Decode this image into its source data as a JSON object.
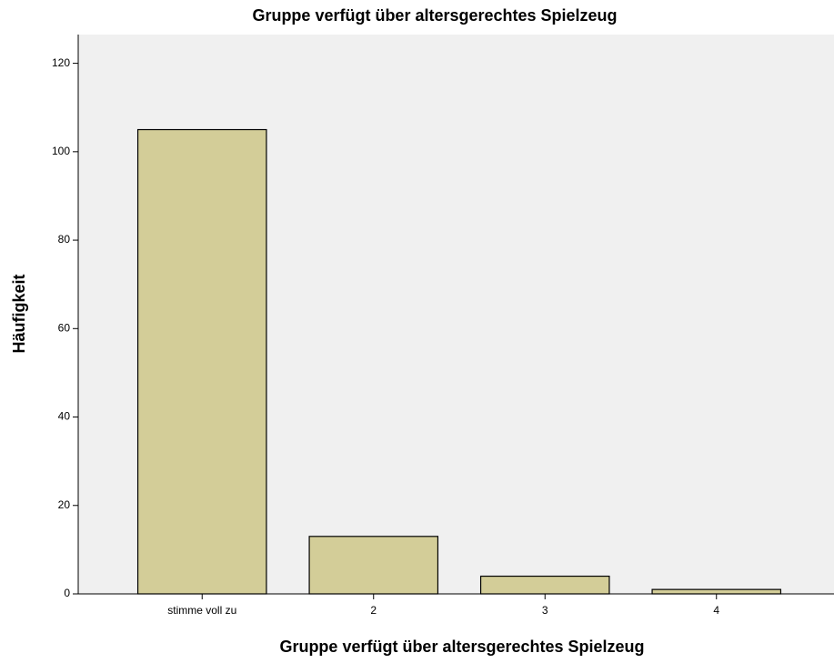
{
  "chart_data": {
    "type": "bar",
    "title": "Gruppe verfügt über altersgerechtes Spielzeug",
    "x_label": "Gruppe verfügt über altersgerechtes Spielzeug",
    "y_label": "Häufigkeit",
    "categories": [
      "stimme voll zu",
      "2",
      "3",
      "4"
    ],
    "values": [
      105,
      13,
      4,
      1
    ],
    "color": "#d3cd98",
    "ylim": [
      0,
      126.5
    ],
    "yticks": [
      0,
      20,
      40,
      60,
      80,
      100,
      120
    ],
    "grid": false
  }
}
